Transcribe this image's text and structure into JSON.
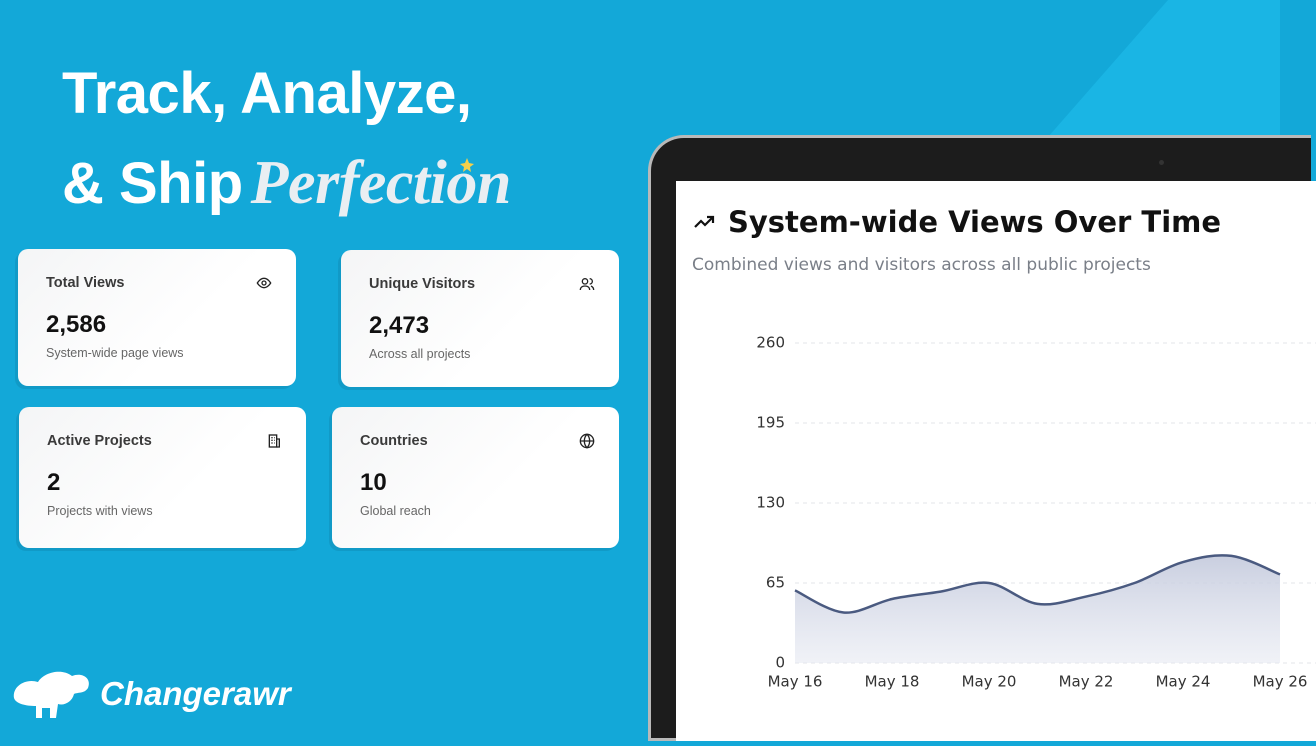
{
  "headline": {
    "line1": "Track, Analyze,",
    "line2": "& Ship",
    "accent": "Perfection"
  },
  "cards": [
    {
      "label": "Total Views",
      "value": "2,586",
      "caption": "System-wide page views"
    },
    {
      "label": "Unique Visitors",
      "value": "2,473",
      "caption": "Across all projects"
    },
    {
      "label": "Active Projects",
      "value": "2",
      "caption": "Projects with views"
    },
    {
      "label": "Countries",
      "value": "10",
      "caption": "Global reach"
    }
  ],
  "brand": "Changerawr",
  "chart_data": {
    "type": "area",
    "title": "System-wide Views Over Time",
    "subtitle": "Combined views and visitors across all public projects",
    "categories": [
      "May 16",
      null,
      "May 18",
      null,
      "May 20",
      null,
      "May 22",
      null,
      "May 24",
      null,
      "May 26"
    ],
    "values": [
      59,
      41,
      52,
      58,
      65,
      48,
      54,
      65,
      82,
      87,
      72
    ],
    "color": "#4a5a80",
    "ylim": [
      0,
      260
    ],
    "yticks": [
      0,
      65,
      130,
      195,
      260
    ],
    "grid": true
  }
}
